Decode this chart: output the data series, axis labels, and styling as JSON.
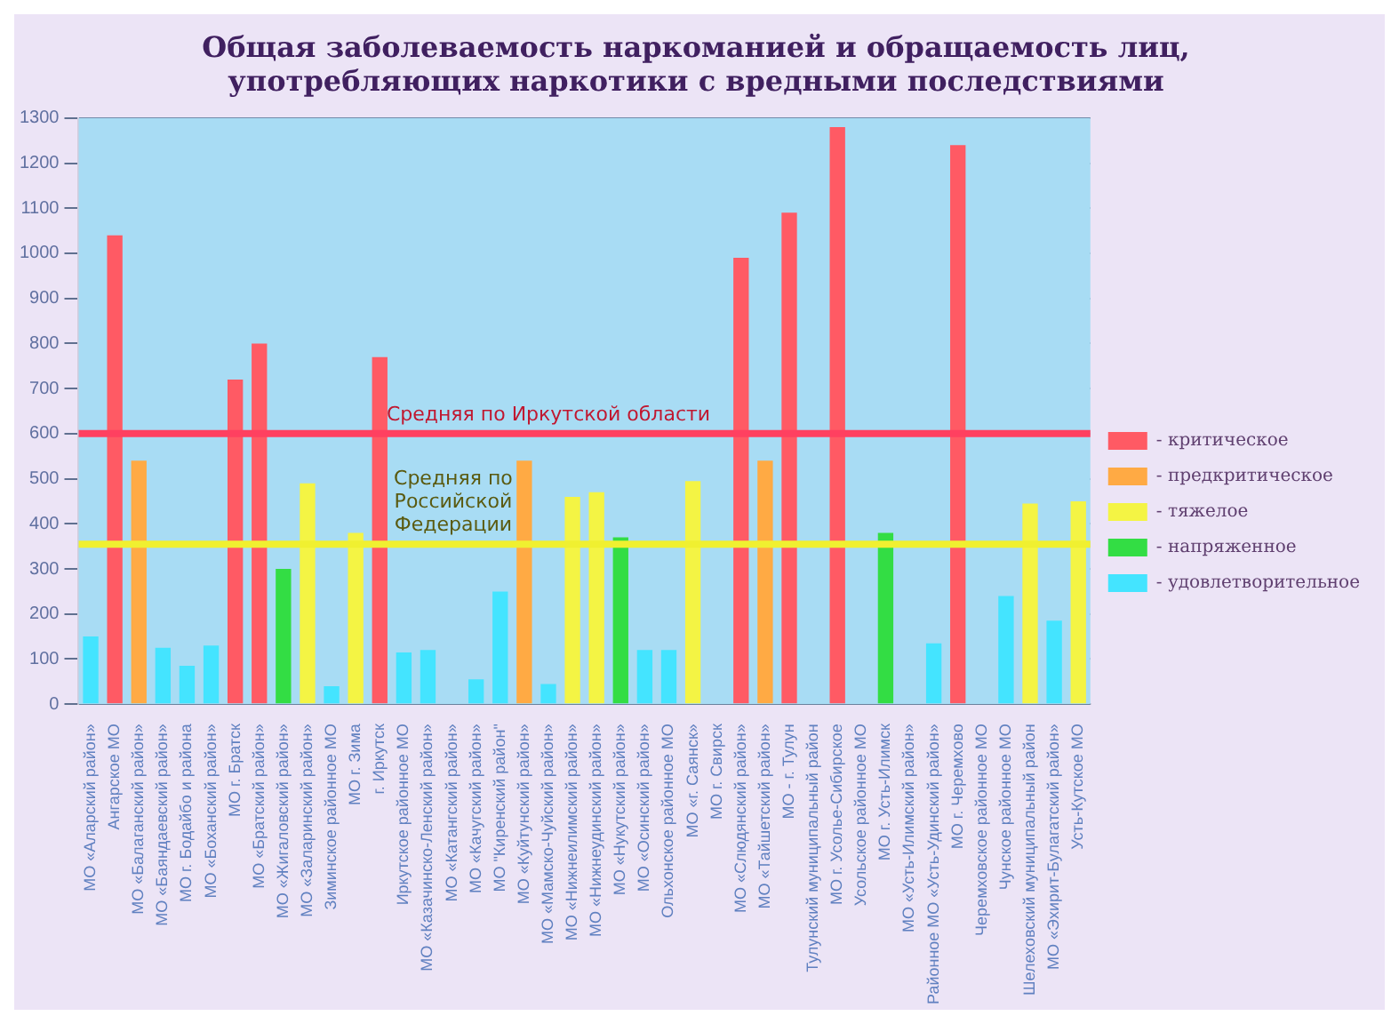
{
  "chart_data": {
    "type": "bar",
    "title": "Общая заболеваемость наркоманией и обращаемость лиц, употребляющих наркотики с вредными последствиями",
    "categories": [
      "МО «Аларский район»",
      "Ангарское МО",
      "МО «Балаганский район»",
      "МО «Баяндаевский район»",
      "МО г. Бодайбо и района",
      "МО «Боханский район»",
      "МО г. Братск",
      "МО «Братский район»",
      "МО «Жигаловский район»",
      "МО «Заларинский район»",
      "Зиминское районное МО",
      "МО г. Зима",
      "г. Иркутск",
      "Иркутское районное МО",
      "МО «Казачинско-Ленский район»",
      "МО «Катангский район»",
      "МО «Качугский район»",
      "МО \"Киренский район\"",
      "МО «Куйтунский район»",
      "МО «Мамско-Чуйский район»",
      "МО «Нижнеилимский район»",
      "МО «Нижнеудинский район»",
      "МО «Нукутский район»",
      "МО «Осинский район»",
      "Ольхонское районное МО",
      "МО «г. Саянск»",
      "МО г. Свирск",
      "МО «Слюдянский район»",
      "МО «Тайшетский район»",
      "МО - г. Тулун",
      "Тулунский муниципальный район",
      "МО г. Усолье-Сибирское",
      "Усольское районное МО",
      "МО г. Усть-Илимск",
      "МО «Усть-Илимский район»",
      "Районное МО «Усть-Удинский район»",
      "МО г. Черемхово",
      "Черемховское районное МО",
      "Чунское районное МО",
      "Шелеховский муниципальный район",
      "МО «Эхирит-Булагатский район»",
      "Усть-Кутское МО"
    ],
    "series": [
      {
        "name": "- критическое",
        "color": "#ff5a64",
        "values": [
          null,
          1040,
          null,
          null,
          null,
          null,
          720,
          800,
          null,
          null,
          null,
          null,
          770,
          null,
          null,
          null,
          null,
          null,
          null,
          null,
          null,
          null,
          null,
          null,
          null,
          null,
          null,
          990,
          null,
          1090,
          null,
          1280,
          null,
          null,
          null,
          null,
          1240,
          null,
          null,
          null,
          null,
          null
        ]
      },
      {
        "name": "- предкритическое",
        "color": "#ffaa44",
        "values": [
          null,
          null,
          540,
          null,
          null,
          null,
          null,
          null,
          null,
          null,
          null,
          null,
          null,
          null,
          null,
          null,
          null,
          null,
          540,
          null,
          null,
          null,
          null,
          null,
          null,
          null,
          null,
          null,
          540,
          null,
          null,
          null,
          null,
          null,
          null,
          null,
          null,
          null,
          null,
          null,
          null,
          null
        ]
      },
      {
        "name": "- тяжелое",
        "color": "#f4f444",
        "values": [
          null,
          null,
          null,
          null,
          null,
          null,
          null,
          null,
          null,
          490,
          null,
          380,
          null,
          null,
          null,
          null,
          null,
          null,
          null,
          null,
          460,
          470,
          null,
          null,
          null,
          495,
          null,
          null,
          null,
          null,
          null,
          null,
          null,
          null,
          null,
          null,
          null,
          null,
          null,
          445,
          null,
          450
        ]
      },
      {
        "name": "- напряженное",
        "color": "#33dd44",
        "values": [
          null,
          null,
          null,
          null,
          null,
          null,
          null,
          null,
          300,
          null,
          null,
          null,
          null,
          null,
          null,
          null,
          null,
          null,
          null,
          null,
          null,
          null,
          370,
          null,
          null,
          null,
          null,
          null,
          null,
          null,
          null,
          null,
          null,
          380,
          null,
          null,
          null,
          null,
          null,
          null,
          null,
          null
        ]
      },
      {
        "name": "- удовлетворительное",
        "color": "#44e4ff",
        "values": [
          150,
          null,
          null,
          125,
          85,
          130,
          null,
          null,
          null,
          null,
          40,
          null,
          null,
          115,
          120,
          null,
          55,
          250,
          null,
          45,
          null,
          null,
          null,
          120,
          120,
          null,
          null,
          null,
          null,
          null,
          null,
          null,
          null,
          null,
          null,
          135,
          null,
          null,
          240,
          null,
          185,
          null
        ]
      }
    ],
    "ylim": [
      0,
      1300
    ],
    "yticks": [
      0,
      100,
      200,
      300,
      400,
      500,
      600,
      700,
      800,
      900,
      1000,
      1100,
      1200,
      1300
    ],
    "grid": "y",
    "legend": "right",
    "ref_lines": [
      {
        "axis": "y",
        "value": 355,
        "label": "Средняя по Российской Федерации",
        "color": "#f0f030"
      },
      {
        "axis": "y",
        "value": 600,
        "label": "Средняя по Иркутской области",
        "color": "#ff4060"
      }
    ]
  }
}
